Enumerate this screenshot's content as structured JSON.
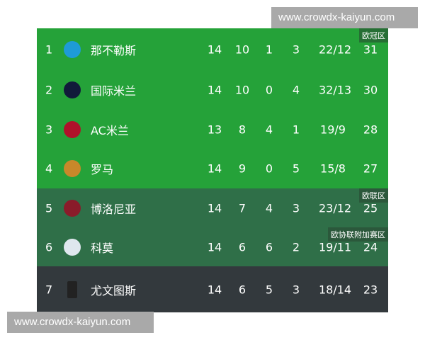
{
  "watermark": "www.crowdx-kaiyun.com",
  "colors": {
    "champions": "#25a239",
    "europa": "#2f6f48",
    "other": "#33393d"
  },
  "rows": [
    {
      "rank": "1",
      "team": "那不勒斯",
      "logo": "napoli-logo",
      "p": "14",
      "w": "10",
      "d": "1",
      "l": "3",
      "gd": "22/12",
      "pts": "31",
      "zone": "欧冠区"
    },
    {
      "rank": "2",
      "team": "国际米兰",
      "logo": "inter-logo",
      "p": "14",
      "w": "10",
      "d": "0",
      "l": "4",
      "gd": "32/13",
      "pts": "30"
    },
    {
      "rank": "3",
      "team": "AC米兰",
      "logo": "ac-milan-logo",
      "p": "13",
      "w": "8",
      "d": "4",
      "l": "1",
      "gd": "19/9",
      "pts": "28"
    },
    {
      "rank": "4",
      "team": "罗马",
      "logo": "roma-logo",
      "p": "14",
      "w": "9",
      "d": "0",
      "l": "5",
      "gd": "15/8",
      "pts": "27"
    },
    {
      "rank": "5",
      "team": "博洛尼亚",
      "logo": "bologna-logo",
      "p": "14",
      "w": "7",
      "d": "4",
      "l": "3",
      "gd": "23/12",
      "pts": "25",
      "zone": "欧联区"
    },
    {
      "rank": "6",
      "team": "科莫",
      "logo": "como-logo",
      "p": "14",
      "w": "6",
      "d": "6",
      "l": "2",
      "gd": "19/11",
      "pts": "24",
      "zone": "欧协联附加赛区"
    },
    {
      "rank": "7",
      "team": "尤文图斯",
      "logo": "juventus-logo",
      "p": "14",
      "w": "6",
      "d": "5",
      "l": "3",
      "gd": "18/14",
      "pts": "23"
    }
  ]
}
